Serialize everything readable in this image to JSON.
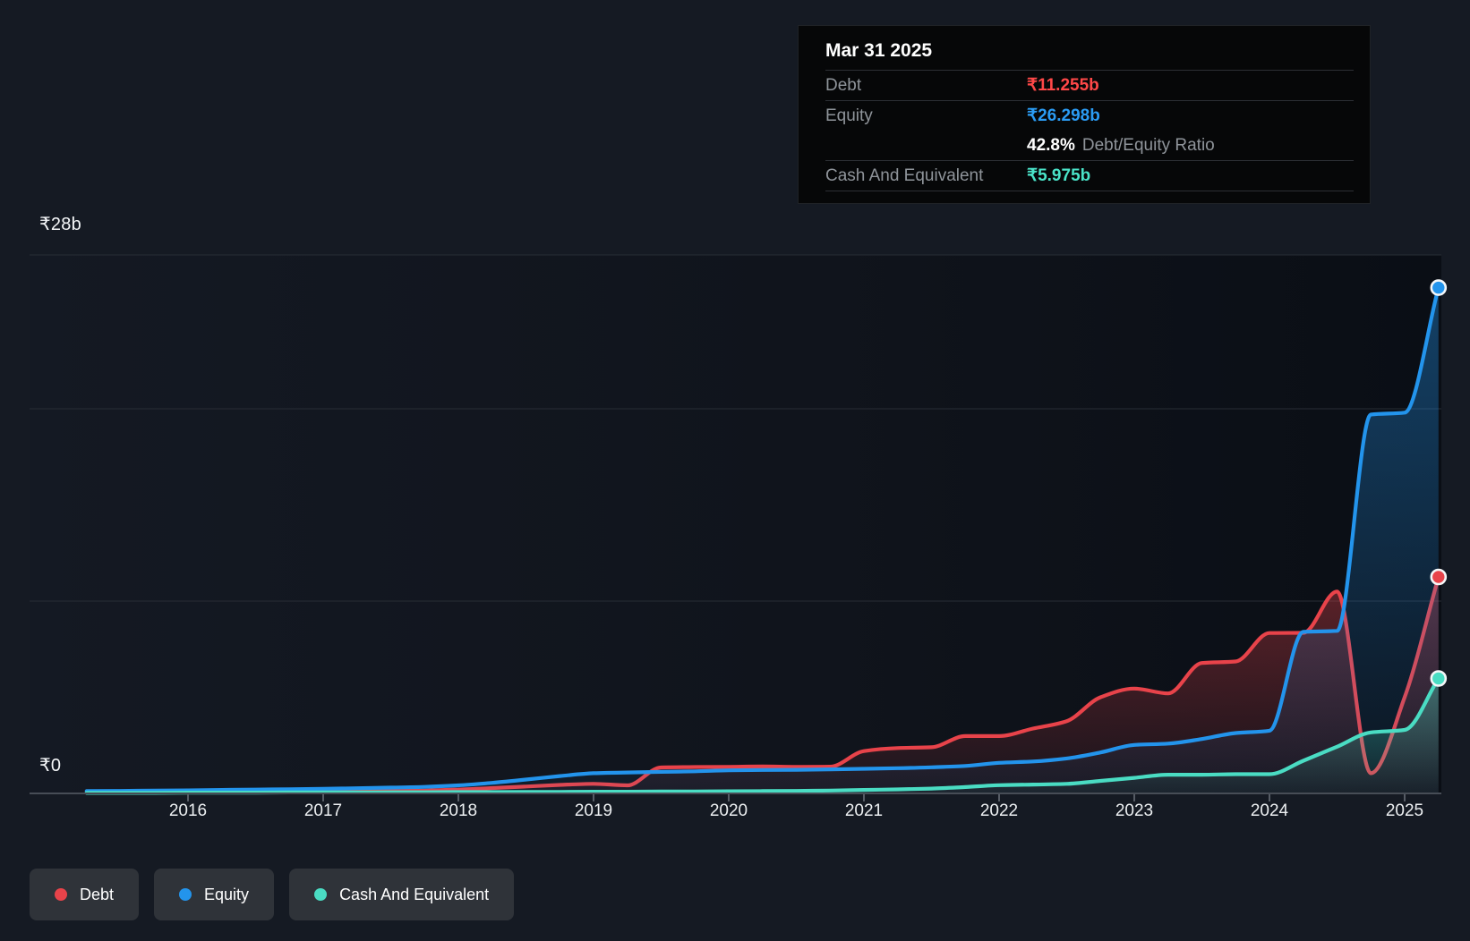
{
  "y_axis": {
    "top": "₹28b",
    "zero": "₹0"
  },
  "x_axis": {
    "years": [
      "2016",
      "2017",
      "2018",
      "2019",
      "2020",
      "2021",
      "2022",
      "2023",
      "2024",
      "2025"
    ]
  },
  "tooltip": {
    "date": "Mar 31 2025",
    "rows": [
      {
        "label": "Debt",
        "value": "₹11.255b",
        "color": "#ff4848"
      },
      {
        "label": "Equity",
        "value": "₹26.298b",
        "color": "#2b9cf4"
      },
      {
        "label": "Cash And Equivalent",
        "value": "₹5.975b",
        "color": "#4ae3c8"
      }
    ],
    "ratio_value": "42.8%",
    "ratio_label": "Debt/Equity Ratio"
  },
  "legend": {
    "items": [
      "Debt",
      "Equity",
      "Cash And Equivalent"
    ]
  },
  "chart_data": {
    "type": "area",
    "title": "Debt to Equity history",
    "x_unit": "year (quarterly points, quarter-end)",
    "y_unit": "₹ billions",
    "ylim": [
      0,
      28
    ],
    "gridlines_y": [
      0,
      10,
      20,
      28
    ],
    "y_tick_labels_visible": [
      "₹28b",
      "₹0"
    ],
    "x_tick_labels": [
      "2016",
      "2017",
      "2018",
      "2019",
      "2020",
      "2021",
      "2022",
      "2023",
      "2024",
      "2025"
    ],
    "legend_position": "bottom-left",
    "x": [
      2015.25,
      2015.5,
      2015.75,
      2016,
      2016.25,
      2016.5,
      2016.75,
      2017,
      2017.25,
      2017.5,
      2017.75,
      2018,
      2018.25,
      2018.5,
      2018.75,
      2019,
      2019.25,
      2019.5,
      2019.75,
      2020,
      2020.25,
      2020.5,
      2020.75,
      2021,
      2021.25,
      2021.5,
      2021.75,
      2022,
      2022.25,
      2022.5,
      2022.75,
      2023,
      2023.25,
      2023.5,
      2023.75,
      2024,
      2024.25,
      2024.5,
      2024.75,
      2025,
      2025.25
    ],
    "series": [
      {
        "name": "Debt",
        "color": "#e8434a",
        "end_label": "₹11.255b",
        "values": [
          0.04,
          0.04,
          0.05,
          0.05,
          0.06,
          0.07,
          0.08,
          0.09,
          0.1,
          0.12,
          0.15,
          0.2,
          0.28,
          0.36,
          0.44,
          0.5,
          0.42,
          1.35,
          1.37,
          1.38,
          1.4,
          1.38,
          1.39,
          2.2,
          2.36,
          2.4,
          2.98,
          2.98,
          3.37,
          3.76,
          5.0,
          5.45,
          5.2,
          6.78,
          6.86,
          8.34,
          8.35,
          10.5,
          1.05,
          5.0,
          11.255
        ]
      },
      {
        "name": "Equity",
        "color": "#2394ec",
        "end_label": "₹26.298b",
        "values": [
          0.12,
          0.13,
          0.15,
          0.16,
          0.18,
          0.2,
          0.22,
          0.24,
          0.27,
          0.3,
          0.34,
          0.42,
          0.55,
          0.72,
          0.9,
          1.05,
          1.09,
          1.12,
          1.15,
          1.2,
          1.22,
          1.23,
          1.25,
          1.28,
          1.31,
          1.36,
          1.43,
          1.59,
          1.66,
          1.82,
          2.13,
          2.52,
          2.59,
          2.83,
          3.14,
          3.26,
          8.4,
          8.45,
          19.7,
          19.8,
          26.298
        ]
      },
      {
        "name": "Cash And Equivalent",
        "color": "#4adcc3",
        "end_label": "₹5.975b",
        "values": [
          0.03,
          0.03,
          0.03,
          0.04,
          0.04,
          0.04,
          0.05,
          0.05,
          0.05,
          0.06,
          0.06,
          0.07,
          0.07,
          0.08,
          0.08,
          0.09,
          0.09,
          0.1,
          0.1,
          0.11,
          0.12,
          0.13,
          0.15,
          0.18,
          0.21,
          0.25,
          0.33,
          0.43,
          0.46,
          0.5,
          0.65,
          0.81,
          0.97,
          0.97,
          1.0,
          1.0,
          1.7,
          2.43,
          3.17,
          3.3,
          5.975
        ]
      }
    ],
    "latest_point": {
      "date": "Mar 31 2025",
      "debt": 11.255,
      "equity": 26.298,
      "cash_and_equivalent": 5.975,
      "debt_equity_ratio_pct": 42.8
    }
  }
}
